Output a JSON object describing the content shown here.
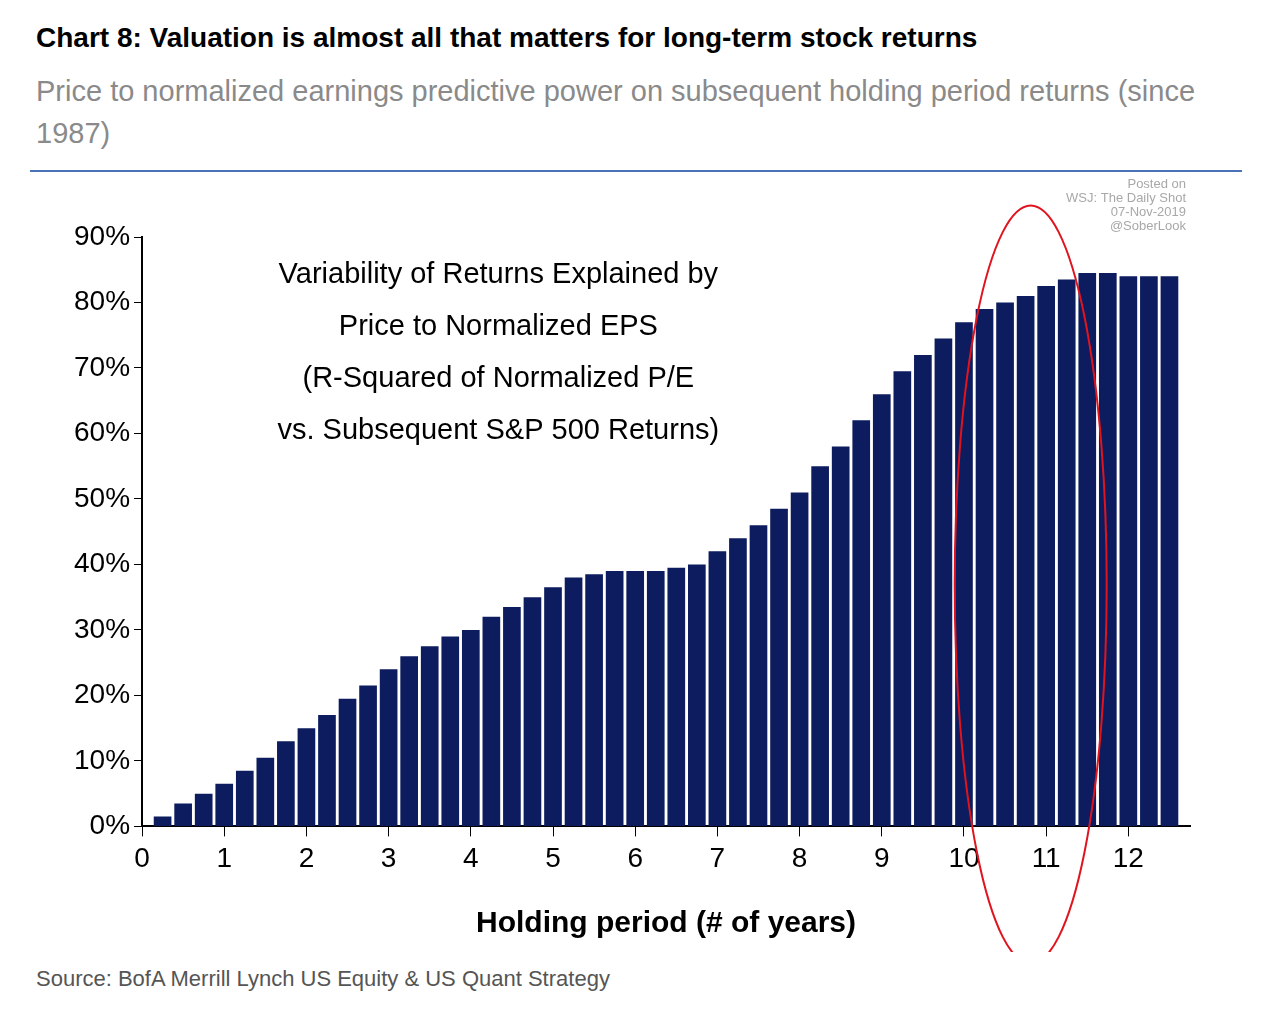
{
  "chart_data": {
    "type": "bar",
    "title": "Chart 8: Valuation is almost all that matters for long-term stock returns",
    "subtitle": "Price to normalized earnings predictive power on subsequent holding period returns (since 1987)",
    "annotation": [
      "Variability of Returns Explained by",
      "Price to Normalized EPS",
      "(R-Squared of Normalized P/E",
      "vs. Subsequent S&P 500 Returns)"
    ],
    "watermark": [
      "Posted on",
      "WSJ: The Daily Shot",
      "07-Nov-2019",
      "@SoberLook"
    ],
    "xlabel": "Holding period (# of years)",
    "source": "Source: BofA Merrill Lynch US Equity & US Quant Strategy",
    "x": [
      0.25,
      0.5,
      0.75,
      1,
      1.25,
      1.5,
      1.75,
      2,
      2.25,
      2.5,
      2.75,
      3,
      3.25,
      3.5,
      3.75,
      4,
      4.25,
      4.5,
      4.75,
      5,
      5.25,
      5.5,
      5.75,
      6,
      6.25,
      6.5,
      6.75,
      7,
      7.25,
      7.5,
      7.75,
      8,
      8.25,
      8.5,
      8.75,
      9,
      9.25,
      9.5,
      9.75,
      10,
      10.25,
      10.5,
      10.75,
      11,
      11.25,
      11.5,
      11.75,
      12,
      12.25,
      12.5
    ],
    "values": [
      1.5,
      3.5,
      5,
      6.5,
      8.5,
      10.5,
      13,
      15,
      17,
      19.5,
      21.5,
      24,
      26,
      27.5,
      29,
      30,
      32,
      33.5,
      35,
      36.5,
      38,
      38.5,
      39,
      39,
      39,
      39.5,
      40,
      42,
      44,
      46,
      48.5,
      51,
      55,
      58,
      62,
      66,
      69.5,
      72,
      74.5,
      77,
      79,
      80,
      81,
      82.5,
      83.5,
      84.5,
      84.5,
      84,
      84,
      84
    ],
    "color": "#0c1c5e",
    "xlim": [
      0,
      12.75
    ],
    "xticks": [
      0,
      1,
      2,
      3,
      4,
      5,
      6,
      7,
      8,
      9,
      10,
      11,
      12
    ],
    "ylim": [
      0,
      90
    ],
    "yticks": [
      {
        "value": 0,
        "label": "0%"
      },
      {
        "value": 10,
        "label": "10%"
      },
      {
        "value": 20,
        "label": "20%"
      },
      {
        "value": 30,
        "label": "30%"
      },
      {
        "value": 40,
        "label": "40%"
      },
      {
        "value": 50,
        "label": "50%"
      },
      {
        "value": 60,
        "label": "60%"
      },
      {
        "value": 70,
        "label": "70%"
      },
      {
        "value": 80,
        "label": "80%"
      },
      {
        "value": 90,
        "label": "90%"
      }
    ],
    "grid": false
  }
}
